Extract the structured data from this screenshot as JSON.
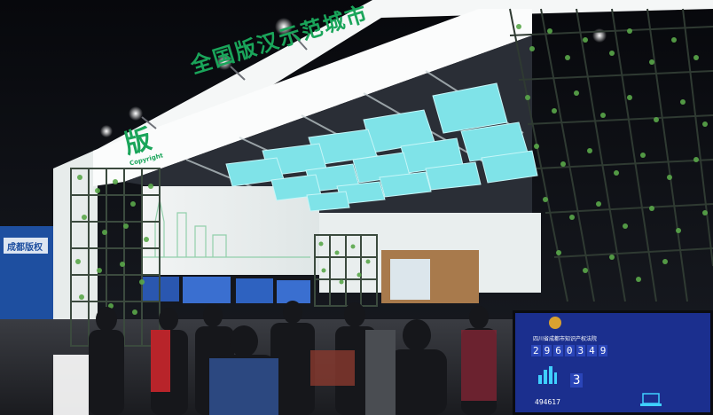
{
  "banner": {
    "title": "全国版汉示范城市",
    "logo_text": "版",
    "logo_sub": "Copyright"
  },
  "side_sign": {
    "text": "成都版权"
  },
  "screen": {
    "court_name": "四川省成都市知识产权法院",
    "counter_digits": [
      "2",
      "9",
      "6",
      "0",
      "3",
      "4",
      "9"
    ],
    "stat_value": "494617",
    "badge_value": "3"
  },
  "colors": {
    "brand_green": "#1aa55a",
    "ceiling_cube": "#7fe6ea",
    "screen_blue": "#1b2f8e"
  }
}
